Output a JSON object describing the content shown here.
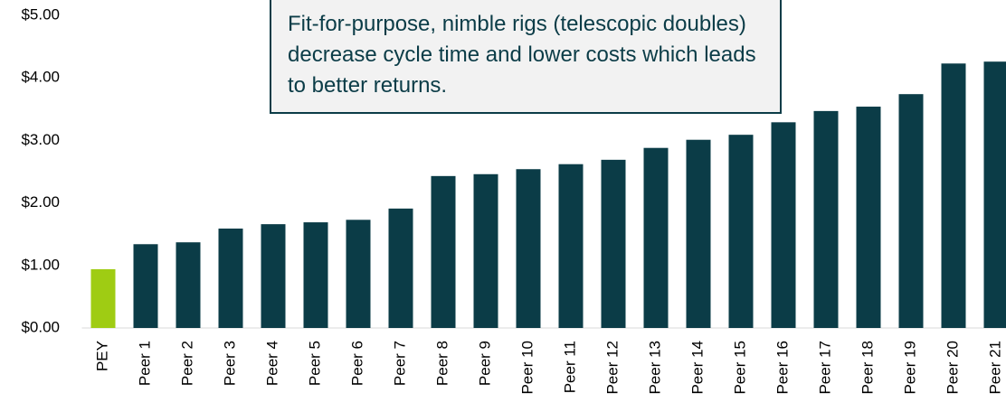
{
  "chart_data": {
    "type": "bar",
    "annotation": "Fit-for-purpose, nimble rigs (telescopic doubles) decrease cycle time and lower costs which leads to better returns.",
    "categories": [
      "PEY",
      "Peer 1",
      "Peer 2",
      "Peer 3",
      "Peer 4",
      "Peer 5",
      "Peer 6",
      "Peer 7",
      "Peer 8",
      "Peer 9",
      "Peer 10",
      "Peer 11",
      "Peer 12",
      "Peer 13",
      "Peer 14",
      "Peer 15",
      "Peer 16",
      "Peer 17",
      "Peer 18",
      "Peer 19",
      "Peer 20",
      "Peer 21"
    ],
    "values": [
      0.94,
      1.34,
      1.37,
      1.59,
      1.66,
      1.69,
      1.73,
      1.91,
      2.43,
      2.46,
      2.54,
      2.62,
      2.69,
      2.88,
      3.01,
      3.09,
      3.29,
      3.47,
      3.54,
      3.74,
      4.23,
      4.26
    ],
    "colors": [
      "#9fcc13",
      "#0b3c47",
      "#0b3c47",
      "#0b3c47",
      "#0b3c47",
      "#0b3c47",
      "#0b3c47",
      "#0b3c47",
      "#0b3c47",
      "#0b3c47",
      "#0b3c47",
      "#0b3c47",
      "#0b3c47",
      "#0b3c47",
      "#0b3c47",
      "#0b3c47",
      "#0b3c47",
      "#0b3c47",
      "#0b3c47",
      "#0b3c47",
      "#0b3c47",
      "#0b3c47"
    ],
    "ylim": [
      0,
      5
    ],
    "yticks": [
      {
        "value": 0,
        "label": "$0.00"
      },
      {
        "value": 1,
        "label": "$1.00"
      },
      {
        "value": 2,
        "label": "$2.00"
      },
      {
        "value": 3,
        "label": "$3.00"
      },
      {
        "value": 4,
        "label": "$4.00"
      },
      {
        "value": 5,
        "label": "$5.00"
      }
    ],
    "grid": false
  }
}
